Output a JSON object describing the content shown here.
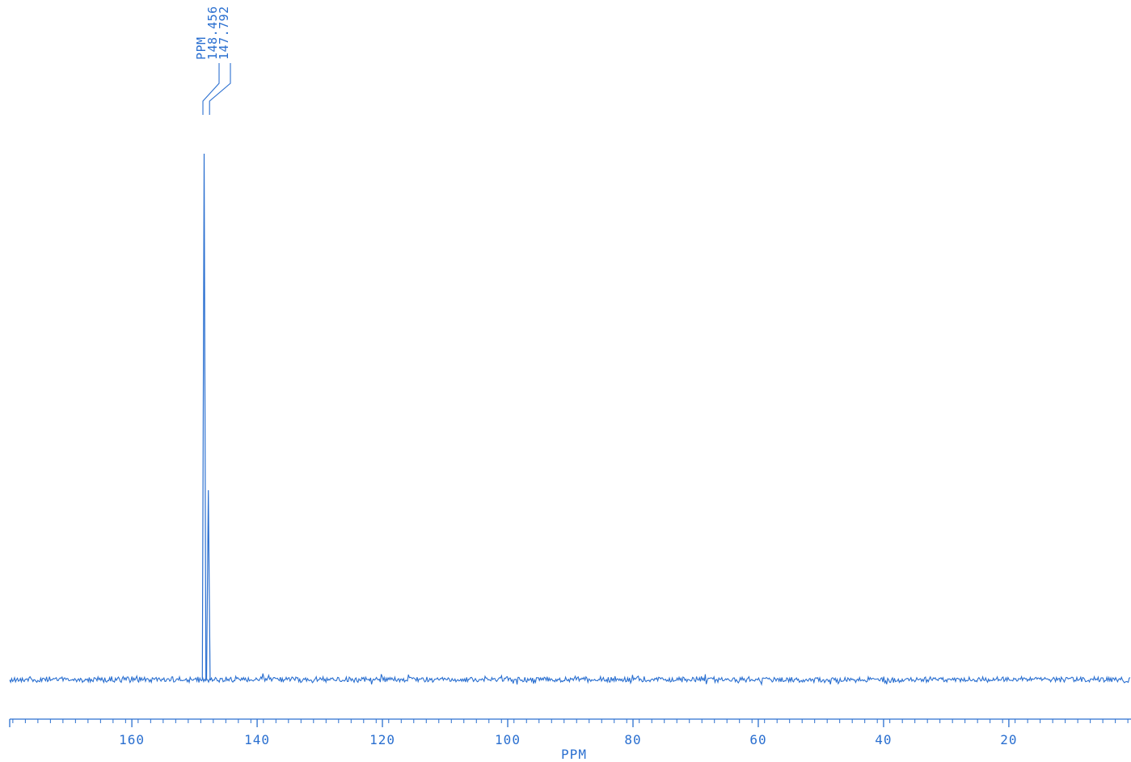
{
  "colors": {
    "ink": "#2a6fd0",
    "background": "#ffffff"
  },
  "chart_data": {
    "type": "line",
    "title": "",
    "xlabel": "PPM",
    "ylabel": "",
    "xlim": [
      179.5,
      0.5
    ],
    "x_reversed": true,
    "grid": false,
    "legend": "none",
    "ticks": {
      "major": [
        160,
        140,
        120,
        100,
        80,
        60,
        40,
        20
      ],
      "major_labels": [
        "160",
        "140",
        "120",
        "100",
        "80",
        "60",
        "40",
        "20"
      ],
      "minor_step": 2
    },
    "peak_list": {
      "header": "PPM",
      "peaks": [
        "148.456",
        "147.792"
      ]
    },
    "series": [
      {
        "values_note_free": true,
        "x": [
          179.5,
          149.2,
          148.7,
          148.456,
          148.2,
          148.0,
          147.792,
          147.5,
          0.5
        ],
        "y": [
          0.0,
          0.0,
          0.05,
          1.0,
          0.04,
          0.05,
          0.36,
          0.0,
          0.0
        ]
      }
    ]
  }
}
